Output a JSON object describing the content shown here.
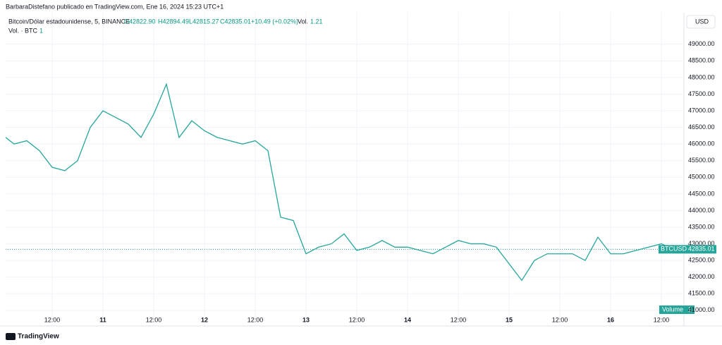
{
  "header": {
    "byline": "BarbaraDistefano publicado en TradingView.com, Ene 16, 2024 15:23 UTC+1",
    "symbol": "Bitcoin/Dólar estadounidense, 5, BINANCE",
    "open": "O42822.90",
    "high": "H42894.49",
    "low": "L42815.27",
    "close": "C42835.01",
    "change": "+10.49 (+0.02%)",
    "vol_label": "Vol.",
    "vol_value": "1.21",
    "volume_study": "Vol. · BTC",
    "volume_study_value": "1",
    "currency": "USD",
    "volume_tag": "Volume",
    "volume_tag_value": "1",
    "logo": "TradingView"
  },
  "chart_data": {
    "type": "line",
    "categories": [
      null,
      null,
      null,
      null,
      "12:00",
      null,
      null,
      null,
      "11",
      null,
      null,
      null,
      "12:00",
      null,
      null,
      null,
      "12",
      null,
      null,
      null,
      "12:00",
      null,
      null,
      null,
      "13",
      null,
      null,
      null,
      "12:00",
      null,
      null,
      null,
      "14",
      null,
      null,
      null,
      "12:00",
      null,
      null,
      null,
      "15",
      null,
      null,
      null,
      "12:00",
      null,
      null,
      null,
      "16",
      null,
      null,
      null,
      "12:00",
      null
    ],
    "series": [
      {
        "name": "BTCUSD",
        "color": "#26a69a",
        "values": [
          46200,
          46000,
          46100,
          45800,
          45300,
          45200,
          45500,
          46500,
          47000,
          46800,
          46600,
          46200,
          46900,
          47800,
          46200,
          46700,
          46400,
          46200,
          46100,
          46000,
          46100,
          45800,
          43800,
          43700,
          42700,
          42900,
          43000,
          43300,
          42800,
          42900,
          43100,
          42900,
          42900,
          42800,
          42700,
          42900,
          43100,
          43000,
          43000,
          42900,
          42400,
          41900,
          42500,
          42700,
          42700,
          42700,
          42500,
          43200,
          42700,
          42700,
          42800,
          42900,
          43000,
          42835.01
        ]
      }
    ],
    "ylim": [
      40530,
      49950
    ],
    "yticks": [
      {
        "value": 41000,
        "label": "41000.00"
      },
      {
        "value": 41500,
        "label": "41500.00"
      },
      {
        "value": 42000,
        "label": "42000.00"
      },
      {
        "value": 42500,
        "label": "42500.00"
      },
      {
        "value": 43000,
        "label": "43000.00"
      },
      {
        "value": 43500,
        "label": "43500.00"
      },
      {
        "value": 44000,
        "label": "44000.00"
      },
      {
        "value": 44500,
        "label": "44500.00"
      },
      {
        "value": 45000,
        "label": "45000.00"
      },
      {
        "value": 45500,
        "label": "45500.00"
      },
      {
        "value": 46000,
        "label": "46000.00"
      },
      {
        "value": 46500,
        "label": "46500.00"
      },
      {
        "value": 47000,
        "label": "47000.00"
      },
      {
        "value": 47500,
        "label": "47500.00"
      },
      {
        "value": 48000,
        "label": "48000.00"
      },
      {
        "value": 48500,
        "label": "48500.00"
      },
      {
        "value": 49000,
        "label": "49000.00"
      }
    ],
    "grid": true
  }
}
